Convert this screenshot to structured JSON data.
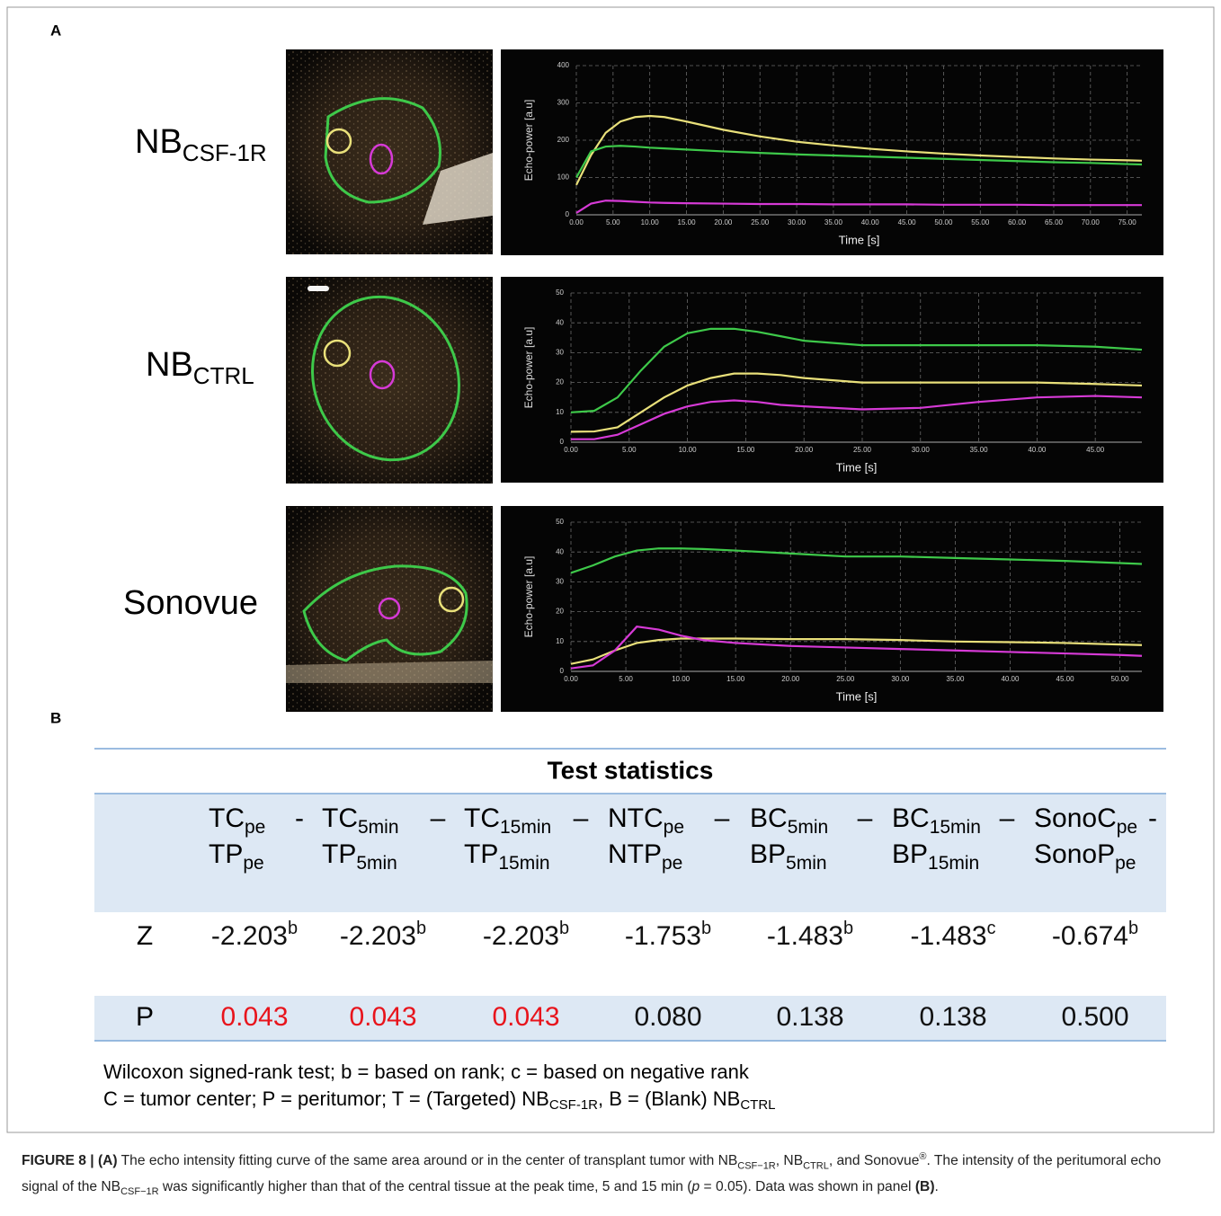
{
  "panel_labels": [
    "A",
    "B"
  ],
  "row_labels": [
    {
      "text": "NB",
      "sub": "CSF-1R"
    },
    {
      "text": "NB",
      "sub": "CTRL"
    },
    {
      "text": "Sonovue"
    }
  ],
  "chart_data": [
    {
      "type": "line",
      "ylabel": "Echo-power [a.u]",
      "xlabel": "Time [s]",
      "grid": true,
      "xlim": [
        0,
        77
      ],
      "ylim": [
        0,
        400
      ],
      "xticks": [
        {
          "value": 0,
          "label": "0.00"
        },
        {
          "value": 5,
          "label": "5.00"
        },
        {
          "value": 10,
          "label": "10.00"
        },
        {
          "value": 15,
          "label": "15.00"
        },
        {
          "value": 20,
          "label": "20.00"
        },
        {
          "value": 25,
          "label": "25.00"
        },
        {
          "value": 30,
          "label": "30.00"
        },
        {
          "value": 35,
          "label": "35.00"
        },
        {
          "value": 40,
          "label": "40.00"
        },
        {
          "value": 45,
          "label": "45.00"
        },
        {
          "value": 50,
          "label": "50.00"
        },
        {
          "value": 55,
          "label": "55.00"
        },
        {
          "value": 60,
          "label": "60.00"
        },
        {
          "value": 65,
          "label": "65.00"
        },
        {
          "value": 70,
          "label": "70.00"
        },
        {
          "value": 75,
          "label": "75.00"
        }
      ],
      "yticks": [
        0,
        100,
        200,
        300,
        400
      ],
      "x": [
        0,
        2,
        4,
        6,
        8,
        10,
        12,
        15,
        20,
        25,
        30,
        35,
        40,
        45,
        50,
        55,
        60,
        65,
        70,
        75,
        77
      ],
      "series": [
        {
          "color": "#e9e07a",
          "values": [
            80,
            160,
            220,
            250,
            262,
            265,
            262,
            250,
            228,
            210,
            196,
            186,
            177,
            170,
            164,
            159,
            155,
            151,
            148,
            146,
            145
          ]
        },
        {
          "color": "#3ec94a",
          "values": [
            100,
            170,
            183,
            185,
            183,
            180,
            178,
            175,
            170,
            166,
            162,
            159,
            156,
            153,
            150,
            147,
            144,
            141,
            139,
            136,
            135
          ]
        },
        {
          "color": "#d63ad6",
          "values": [
            5,
            30,
            38,
            37,
            35,
            33,
            32,
            31,
            30,
            29,
            29,
            28,
            28,
            28,
            27,
            27,
            27,
            26,
            26,
            26,
            26
          ]
        }
      ]
    },
    {
      "type": "line",
      "ylabel": "Echo-power [a.u]",
      "xlabel": "Time [s]",
      "grid": true,
      "xlim": [
        0,
        49
      ],
      "ylim": [
        0,
        50
      ],
      "xticks": [
        {
          "value": 0,
          "label": "0.00"
        },
        {
          "value": 5,
          "label": "5.00"
        },
        {
          "value": 10,
          "label": "10.00"
        },
        {
          "value": 15,
          "label": "15.00"
        },
        {
          "value": 20,
          "label": "20.00"
        },
        {
          "value": 25,
          "label": "25.00"
        },
        {
          "value": 30,
          "label": "30.00"
        },
        {
          "value": 35,
          "label": "35.00"
        },
        {
          "value": 40,
          "label": "40.00"
        },
        {
          "value": 45,
          "label": "45.00"
        }
      ],
      "yticks": [
        0,
        10,
        20,
        30,
        40,
        50
      ],
      "x": [
        0,
        2,
        4,
        6,
        8,
        10,
        12,
        14,
        16,
        18,
        20,
        25,
        30,
        35,
        40,
        45,
        49
      ],
      "series": [
        {
          "color": "#3ec94a",
          "values": [
            10,
            10.5,
            15,
            24,
            32,
            36.5,
            38,
            38,
            37,
            35.5,
            34,
            32.5,
            32.5,
            32.5,
            32.5,
            32,
            31
          ]
        },
        {
          "color": "#e9e07a",
          "values": [
            3.5,
            3.6,
            5,
            10,
            15,
            19,
            21.5,
            23,
            23,
            22.5,
            21.5,
            20,
            20,
            20,
            20,
            19.5,
            19
          ]
        },
        {
          "color": "#d63ad6",
          "values": [
            1,
            1,
            2.5,
            6,
            9.5,
            12,
            13.5,
            14,
            13.5,
            12.5,
            12,
            11,
            11.5,
            13.5,
            15,
            15.5,
            15
          ]
        }
      ]
    },
    {
      "type": "line",
      "ylabel": "Echo-power [a.u]",
      "xlabel": "Time [s]",
      "grid": true,
      "xlim": [
        0,
        52
      ],
      "ylim": [
        0,
        50
      ],
      "xticks": [
        {
          "value": 0,
          "label": "0.00"
        },
        {
          "value": 5,
          "label": "5.00"
        },
        {
          "value": 10,
          "label": "10.00"
        },
        {
          "value": 15,
          "label": "15.00"
        },
        {
          "value": 20,
          "label": "20.00"
        },
        {
          "value": 25,
          "label": "25.00"
        },
        {
          "value": 30,
          "label": "30.00"
        },
        {
          "value": 35,
          "label": "35.00"
        },
        {
          "value": 40,
          "label": "40.00"
        },
        {
          "value": 45,
          "label": "45.00"
        },
        {
          "value": 50,
          "label": "50.00"
        }
      ],
      "yticks": [
        0,
        10,
        20,
        30,
        40,
        50
      ],
      "x": [
        0,
        2,
        4,
        6,
        8,
        10,
        12,
        15,
        20,
        25,
        30,
        35,
        40,
        45,
        50,
        52
      ],
      "series": [
        {
          "color": "#3ec94a",
          "values": [
            33,
            35.5,
            38.5,
            40.5,
            41.2,
            41.2,
            41,
            40.5,
            39.5,
            38.5,
            38.5,
            38,
            37.5,
            37,
            36.3,
            36
          ]
        },
        {
          "color": "#e9e07a",
          "values": [
            2.5,
            4,
            7,
            9.5,
            10.5,
            11,
            11,
            11,
            10.8,
            10.8,
            10.5,
            10,
            9.8,
            9.5,
            9,
            8.8
          ]
        },
        {
          "color": "#d63ad6",
          "values": [
            1,
            2,
            7,
            15,
            14,
            12,
            10.5,
            9.5,
            8.5,
            8,
            7.5,
            7,
            6.5,
            6,
            5.5,
            5.2
          ]
        }
      ]
    }
  ],
  "table": {
    "title": "Test statistics",
    "columns": [
      {
        "top": "TC",
        "top_sub": "pe",
        "sep": "-",
        "bottom": "TP",
        "bottom_sub": "pe"
      },
      {
        "top": "TC",
        "top_sub": "5min",
        "sep": "–",
        "bottom": "TP",
        "bottom_sub": "5min"
      },
      {
        "top": "TC",
        "top_sub": "15min",
        "sep": "–",
        "bottom": "TP",
        "bottom_sub": "15min"
      },
      {
        "top": "NTC",
        "top_sub": "pe",
        "sep": "–",
        "bottom": "NTP",
        "bottom_sub": "pe"
      },
      {
        "top": "BC",
        "top_sub": "5min",
        "sep": "–",
        "bottom": "BP",
        "bottom_sub": "5min"
      },
      {
        "top": "BC",
        "top_sub": "15min",
        "sep": "–",
        "bottom": "BP",
        "bottom_sub": "15min"
      },
      {
        "top": "SonoC",
        "top_sub": "pe",
        "sep": "-",
        "bottom": "SonoP",
        "bottom_sub": "pe"
      }
    ],
    "rows": [
      {
        "label": "Z",
        "cells": [
          {
            "text": "-2.203",
            "sup": "b"
          },
          {
            "text": "-2.203",
            "sup": "b"
          },
          {
            "text": "-2.203",
            "sup": "b"
          },
          {
            "text": "-1.753",
            "sup": "b"
          },
          {
            "text": "-1.483",
            "sup": "b"
          },
          {
            "text": "-1.483",
            "sup": "c"
          },
          {
            "text": "-0.674",
            "sup": "b"
          }
        ]
      },
      {
        "label": "P",
        "cells": [
          {
            "text": "0.043",
            "color": "#e8141c"
          },
          {
            "text": "0.043",
            "color": "#e8141c"
          },
          {
            "text": "0.043",
            "color": "#e8141c"
          },
          {
            "text": "0.080"
          },
          {
            "text": "0.138"
          },
          {
            "text": "0.138"
          },
          {
            "text": "0.500"
          }
        ]
      }
    ],
    "notes": [
      [
        {
          "text": "Wilcoxon signed-rank test; b = based on rank; c =  based on negative rank"
        }
      ],
      [
        {
          "text": "C = tumor center; P = peritumor; T = (Targeted) NB"
        },
        {
          "text": "CSF-1R",
          "sub": true
        },
        {
          "text": ", B = (Blank) NB"
        },
        {
          "text": "CTRL",
          "sub": true
        }
      ]
    ]
  },
  "caption": [
    {
      "text": "FIGURE 8 | (A)",
      "bold": true
    },
    {
      "text": " The echo intensity fitting curve of the same area around or in the center of transplant tumor with NB"
    },
    {
      "text": "CSF−1R",
      "sub": true
    },
    {
      "text": ", NB"
    },
    {
      "text": "CTRL",
      "sub": true
    },
    {
      "text": ", and Sonovue"
    },
    {
      "text": "®",
      "sup": true
    },
    {
      "text": ". The intensity of the peritumoral echo signal of the NB"
    },
    {
      "text": "CSF−1R",
      "sub": true
    },
    {
      "text": " was significantly higher than that of the central tissue at the peak time, 5 and 15 min ("
    },
    {
      "text": "p",
      "italic": true
    },
    {
      "text": " = 0.05). Data was shown in panel "
    },
    {
      "text": "(B)",
      "bold": true
    },
    {
      "text": "."
    }
  ]
}
